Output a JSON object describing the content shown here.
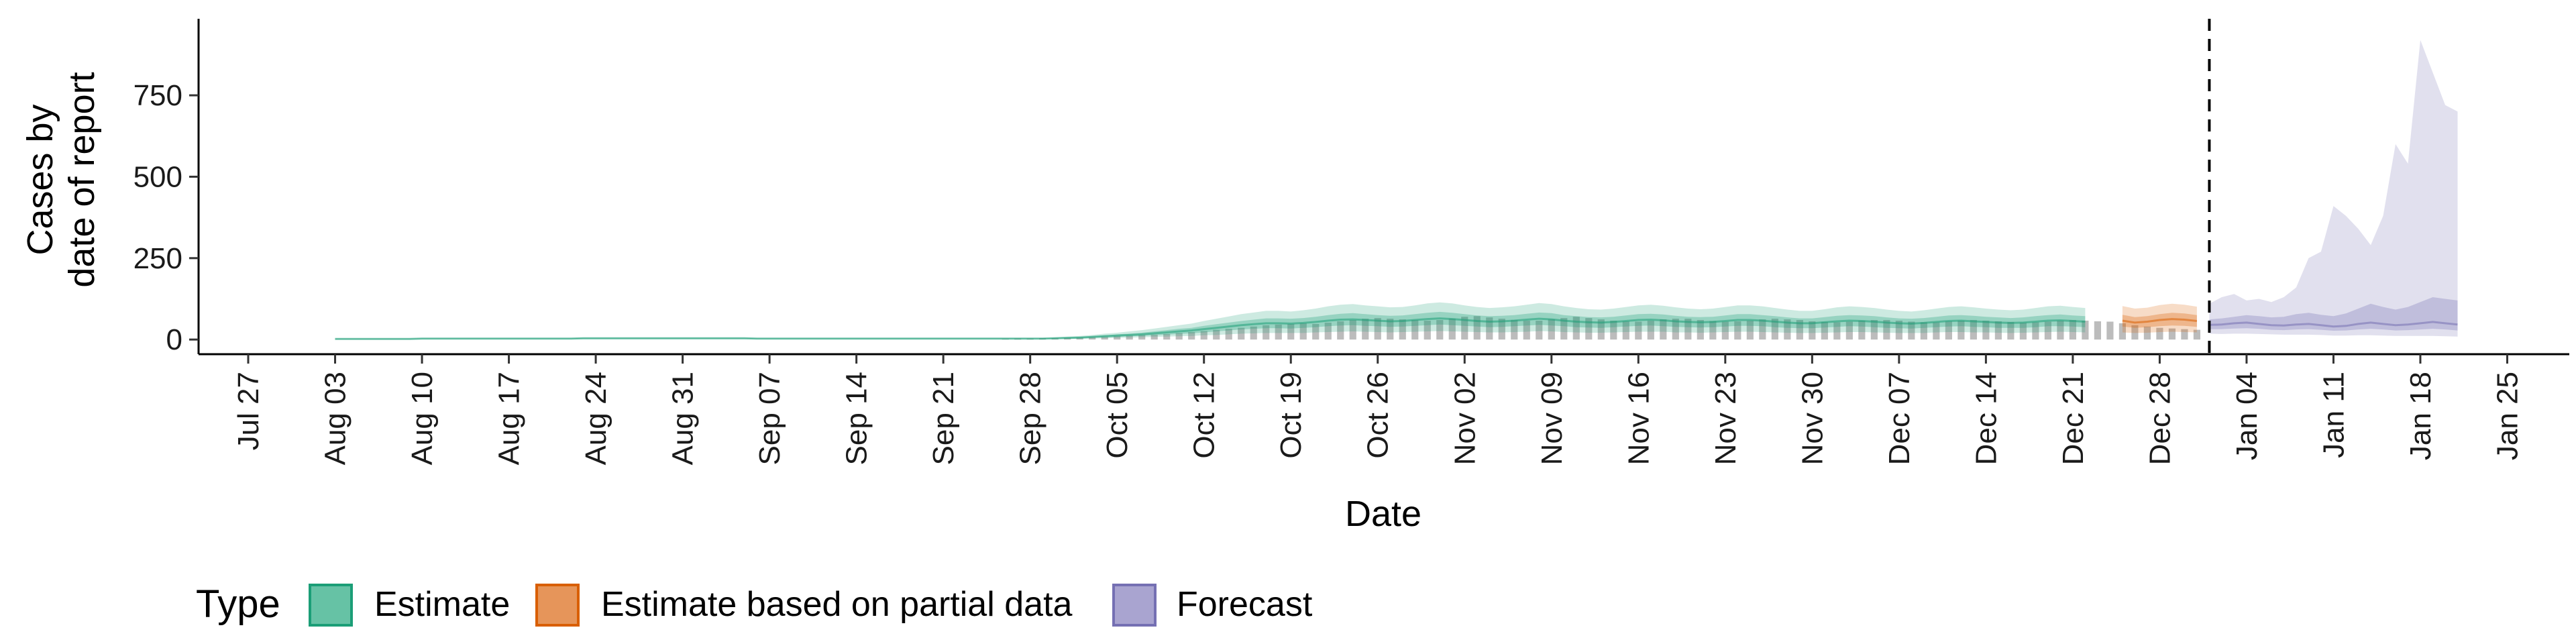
{
  "chart_data": {
    "type": "area",
    "xlabel": "Date",
    "ylabel_lines": [
      "Cases by",
      "date of report"
    ],
    "y_ticks": [
      0,
      250,
      500,
      750
    ],
    "ylim": [
      -45,
      985
    ],
    "xlim": [
      "2020-07-23",
      "2021-01-30"
    ],
    "x_ticks": [
      {
        "date": "2020-07-27",
        "label": "Jul 27"
      },
      {
        "date": "2020-08-03",
        "label": "Aug 03"
      },
      {
        "date": "2020-08-10",
        "label": "Aug 10"
      },
      {
        "date": "2020-08-17",
        "label": "Aug 17"
      },
      {
        "date": "2020-08-24",
        "label": "Aug 24"
      },
      {
        "date": "2020-08-31",
        "label": "Aug 31"
      },
      {
        "date": "2020-09-07",
        "label": "Sep 07"
      },
      {
        "date": "2020-09-14",
        "label": "Sep 14"
      },
      {
        "date": "2020-09-21",
        "label": "Sep 21"
      },
      {
        "date": "2020-09-28",
        "label": "Sep 28"
      },
      {
        "date": "2020-10-05",
        "label": "Oct 05"
      },
      {
        "date": "2020-10-12",
        "label": "Oct 12"
      },
      {
        "date": "2020-10-19",
        "label": "Oct 19"
      },
      {
        "date": "2020-10-26",
        "label": "Oct 26"
      },
      {
        "date": "2020-11-02",
        "label": "Nov 02"
      },
      {
        "date": "2020-11-09",
        "label": "Nov 09"
      },
      {
        "date": "2020-11-16",
        "label": "Nov 16"
      },
      {
        "date": "2020-11-23",
        "label": "Nov 23"
      },
      {
        "date": "2020-11-30",
        "label": "Nov 30"
      },
      {
        "date": "2020-12-07",
        "label": "Dec 07"
      },
      {
        "date": "2020-12-14",
        "label": "Dec 14"
      },
      {
        "date": "2020-12-21",
        "label": "Dec 21"
      },
      {
        "date": "2020-12-28",
        "label": "Dec 28"
      },
      {
        "date": "2021-01-04",
        "label": "Jan 04"
      },
      {
        "date": "2021-01-11",
        "label": "Jan 11"
      },
      {
        "date": "2021-01-18",
        "label": "Jan 18"
      },
      {
        "date": "2021-01-25",
        "label": "Jan 25"
      }
    ],
    "forecast_start_line": "2021-01-01",
    "legend": {
      "title": "Type",
      "position": "bottom",
      "entries": [
        {
          "label": "Estimate",
          "fill": "#66c2a5",
          "stroke": "#1b9e77"
        },
        {
          "label": "Estimate based on partial data",
          "fill": "#e6955a",
          "stroke": "#d95f02"
        },
        {
          "label": "Forecast",
          "fill": "#a9a4d0",
          "stroke": "#7570b3"
        }
      ]
    },
    "colors": {
      "estimate": "#1b9e77",
      "partial": "#d95f02",
      "forecast": "#7570b3",
      "reported_bars": "#a6a6a6"
    },
    "series": [
      {
        "name": "Estimate",
        "x_start": "2020-08-03",
        "x_end": "2020-12-24",
        "median": [
          2,
          2,
          2,
          2,
          2,
          2,
          2,
          3,
          3,
          3,
          3,
          3,
          3,
          3,
          3,
          3,
          3,
          3,
          3,
          3,
          4,
          4,
          4,
          4,
          4,
          4,
          4,
          4,
          4,
          4,
          4,
          4,
          4,
          4,
          3,
          3,
          3,
          3,
          3,
          3,
          3,
          3,
          3,
          3,
          3,
          3,
          3,
          3,
          3,
          3,
          3,
          3,
          3,
          3,
          3,
          3,
          3,
          3,
          4,
          5,
          6,
          8,
          10,
          12,
          14,
          16,
          19,
          22,
          25,
          28,
          32,
          36,
          40,
          44,
          47,
          50,
          50,
          49,
          51,
          54,
          58,
          61,
          62,
          60,
          58,
          56,
          57,
          60,
          63,
          65,
          63,
          60,
          57,
          55,
          56,
          58,
          61,
          64,
          62,
          58,
          55,
          53,
          52,
          54,
          57,
          60,
          61,
          59,
          56,
          54,
          53,
          54,
          57,
          60,
          60,
          58,
          55,
          52,
          50,
          50,
          53,
          56,
          58,
          57,
          55,
          52,
          50,
          49,
          51,
          54,
          57,
          58,
          56,
          54,
          52,
          51,
          52,
          55,
          58,
          59,
          57,
          55
        ],
        "lower50": [
          1,
          1,
          1,
          1,
          1,
          1,
          1,
          2,
          2,
          2,
          2,
          2,
          2,
          2,
          2,
          2,
          2,
          2,
          2,
          2,
          3,
          3,
          3,
          3,
          3,
          3,
          3,
          3,
          3,
          3,
          3,
          3,
          3,
          3,
          2,
          2,
          2,
          2,
          2,
          2,
          2,
          2,
          2,
          2,
          2,
          2,
          2,
          2,
          2,
          2,
          2,
          2,
          2,
          2,
          2,
          2,
          2,
          2,
          3,
          3,
          4,
          6,
          7,
          8,
          10,
          11,
          13,
          15,
          17,
          19,
          22,
          25,
          28,
          31,
          33,
          35,
          35,
          34,
          36,
          38,
          41,
          43,
          44,
          42,
          41,
          39,
          40,
          42,
          44,
          46,
          44,
          42,
          40,
          38,
          39,
          41,
          43,
          45,
          43,
          41,
          38,
          37,
          36,
          38,
          40,
          42,
          43,
          41,
          39,
          38,
          37,
          38,
          40,
          42,
          42,
          41,
          38,
          36,
          35,
          35,
          37,
          39,
          41,
          40,
          38,
          36,
          35,
          34,
          36,
          38,
          40,
          41,
          39,
          38,
          36,
          36,
          36,
          38,
          41,
          41,
          40,
          38
        ],
        "upper50": [
          3,
          3,
          3,
          3,
          3,
          3,
          3,
          4,
          4,
          4,
          4,
          4,
          4,
          4,
          4,
          4,
          4,
          4,
          4,
          4,
          5,
          5,
          5,
          5,
          5,
          5,
          5,
          5,
          5,
          5,
          5,
          5,
          5,
          5,
          4,
          4,
          4,
          4,
          4,
          4,
          4,
          4,
          4,
          4,
          4,
          4,
          4,
          4,
          4,
          4,
          4,
          4,
          4,
          4,
          4,
          4,
          4,
          4,
          5,
          7,
          8,
          10,
          13,
          16,
          18,
          21,
          25,
          29,
          33,
          36,
          42,
          47,
          52,
          57,
          61,
          65,
          65,
          64,
          66,
          70,
          75,
          79,
          81,
          78,
          75,
          73,
          74,
          78,
          82,
          85,
          82,
          78,
          74,
          72,
          73,
          75,
          79,
          83,
          81,
          75,
          72,
          69,
          68,
          70,
          74,
          78,
          79,
          77,
          73,
          70,
          69,
          70,
          74,
          78,
          78,
          75,
          72,
          68,
          65,
          65,
          69,
          73,
          75,
          74,
          72,
          68,
          65,
          64,
          66,
          70,
          74,
          75,
          73,
          70,
          68,
          66,
          68,
          72,
          75,
          77,
          74,
          72
        ],
        "lower90": [
          0,
          0,
          0,
          0,
          0,
          0,
          0,
          1,
          1,
          1,
          1,
          1,
          1,
          1,
          1,
          1,
          1,
          1,
          1,
          1,
          1,
          1,
          1,
          1,
          1,
          1,
          1,
          1,
          1,
          1,
          1,
          1,
          1,
          1,
          1,
          1,
          1,
          1,
          1,
          1,
          1,
          1,
          1,
          1,
          1,
          1,
          1,
          1,
          1,
          1,
          1,
          1,
          1,
          1,
          1,
          1,
          1,
          1,
          1,
          2,
          2,
          3,
          4,
          5,
          6,
          7,
          8,
          9,
          10,
          11,
          13,
          14,
          16,
          18,
          19,
          20,
          20,
          20,
          20,
          22,
          23,
          24,
          25,
          24,
          23,
          22,
          23,
          24,
          25,
          26,
          25,
          24,
          23,
          22,
          22,
          23,
          24,
          26,
          25,
          23,
          22,
          21,
          21,
          22,
          23,
          24,
          24,
          24,
          22,
          22,
          21,
          22,
          23,
          24,
          24,
          23,
          22,
          21,
          20,
          20,
          21,
          22,
          23,
          23,
          22,
          21,
          20,
          20,
          20,
          22,
          23,
          23,
          22,
          22,
          21,
          20,
          21,
          22,
          23,
          24,
          23,
          22
        ],
        "upper90": [
          4,
          4,
          4,
          4,
          4,
          4,
          4,
          5,
          5,
          5,
          5,
          5,
          5,
          5,
          5,
          5,
          5,
          5,
          5,
          5,
          6,
          6,
          6,
          6,
          6,
          6,
          6,
          6,
          6,
          6,
          6,
          6,
          6,
          6,
          5,
          5,
          5,
          5,
          5,
          5,
          5,
          5,
          5,
          5,
          5,
          5,
          5,
          5,
          5,
          5,
          5,
          5,
          5,
          5,
          5,
          5,
          5,
          5,
          7,
          9,
          11,
          14,
          18,
          21,
          25,
          29,
          34,
          39,
          44,
          49,
          57,
          64,
          71,
          78,
          83,
          88,
          88,
          86,
          90,
          95,
          102,
          107,
          109,
          105,
          102,
          99,
          100,
          105,
          111,
          114,
          111,
          105,
          100,
          97,
          99,
          102,
          107,
          112,
          109,
          102,
          97,
          93,
          92,
          95,
          100,
          105,
          107,
          104,
          99,
          95,
          93,
          95,
          100,
          105,
          105,
          102,
          97,
          92,
          88,
          88,
          93,
          99,
          102,
          100,
          97,
          92,
          88,
          86,
          90,
          95,
          100,
          102,
          99,
          95,
          92,
          90,
          92,
          97,
          102,
          104,
          100,
          97
        ]
      },
      {
        "name": "Estimate based on partial data",
        "x_start": "2020-12-25",
        "x_end": "2020-12-31",
        "median": [
          58,
          52,
          55,
          60,
          63,
          61,
          57
        ],
        "lower50": [
          40,
          36,
          38,
          41,
          43,
          42,
          39
        ],
        "upper50": [
          76,
          69,
          72,
          78,
          82,
          80,
          75
        ],
        "lower90": [
          22,
          20,
          21,
          23,
          24,
          23,
          22
        ],
        "upper90": [
          103,
          95,
          98,
          106,
          110,
          107,
          101
        ]
      },
      {
        "name": "Forecast",
        "x_start": "2021-01-01",
        "x_end": "2021-01-21",
        "median": [
          45,
          46,
          50,
          52,
          48,
          44,
          43,
          46,
          48,
          44,
          40,
          42,
          48,
          52,
          48,
          44,
          46,
          50,
          54,
          50,
          46
        ],
        "lower50": [
          32,
          32,
          34,
          35,
          33,
          30,
          29,
          31,
          32,
          30,
          27,
          28,
          31,
          33,
          31,
          28,
          29,
          31,
          33,
          31,
          28
        ],
        "upper50": [
          62,
          65,
          70,
          75,
          72,
          68,
          70,
          78,
          82,
          76,
          72,
          80,
          95,
          110,
          100,
          92,
          100,
          115,
          130,
          125,
          120
        ],
        "lower90": [
          18,
          17,
          18,
          18,
          17,
          16,
          15,
          15,
          15,
          14,
          12,
          12,
          13,
          13,
          12,
          11,
          11,
          11,
          11,
          10,
          9
        ],
        "upper90": [
          110,
          130,
          140,
          120,
          125,
          115,
          130,
          160,
          250,
          270,
          410,
          380,
          340,
          290,
          380,
          600,
          540,
          920,
          820,
          720,
          700
        ]
      }
    ],
    "reported": {
      "x_start": "2020-09-26",
      "x_end": "2020-12-31",
      "values": [
        2,
        3,
        3,
        4,
        4,
        5,
        6,
        7,
        8,
        10,
        12,
        14,
        15,
        17,
        20,
        23,
        26,
        30,
        33,
        36,
        40,
        44,
        46,
        48,
        50,
        48,
        52,
        56,
        60,
        64,
        66,
        64,
        62,
        60,
        58,
        60,
        64,
        70,
        72,
        68,
        64,
        60,
        58,
        58,
        62,
        66,
        70,
        66,
        62,
        58,
        56,
        55,
        58,
        62,
        64,
        64,
        60,
        57,
        55,
        56,
        58,
        62,
        64,
        62,
        60,
        56,
        54,
        53,
        55,
        58,
        60,
        60,
        58,
        55,
        53,
        53,
        56,
        58,
        60,
        58,
        56,
        54,
        52,
        53,
        55,
        58,
        60,
        58,
        56,
        55,
        50,
        44,
        40,
        36,
        34,
        32,
        30
      ]
    }
  }
}
